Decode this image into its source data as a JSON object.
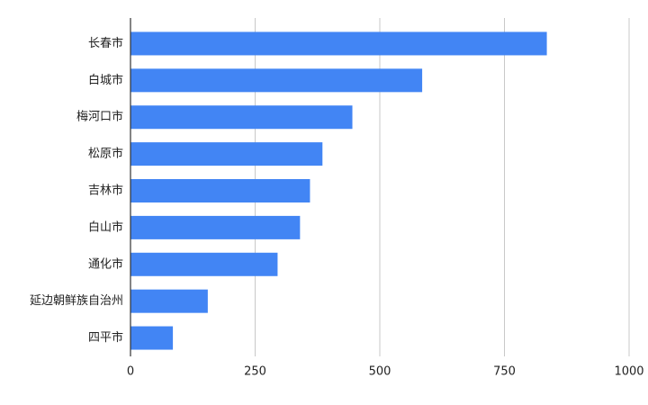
{
  "chart_data": {
    "type": "hbar",
    "categories": [
      "长春市",
      "白城市",
      "梅河口市",
      "松原市",
      "吉林市",
      "白山市",
      "通化市",
      "延边朝鲜族自治州",
      "四平市"
    ],
    "values": [
      835,
      585,
      445,
      385,
      360,
      340,
      295,
      155,
      85
    ],
    "color": "#4285f4",
    "xlim": [
      0,
      1000
    ],
    "xticks": [
      0,
      250,
      500,
      750,
      1000
    ],
    "grid": true
  }
}
